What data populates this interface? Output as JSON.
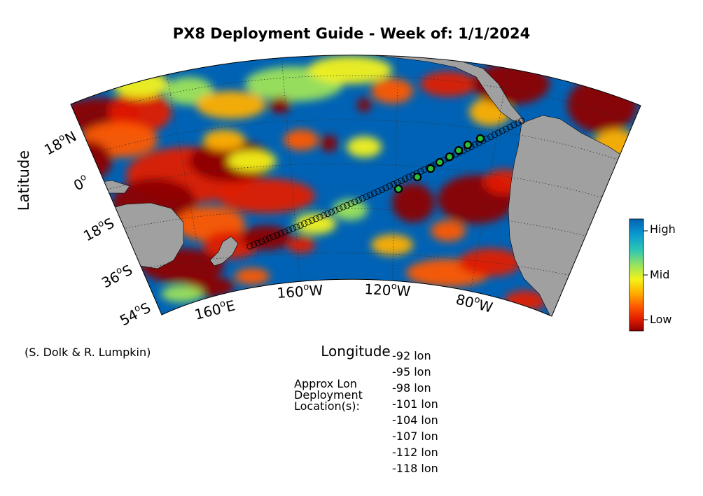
{
  "title": "PX8 Deployment Guide - Week of: 1/1/2024",
  "axes": {
    "xlabel": "Longitude",
    "ylabel": "Latitude",
    "lat_ticks": [
      {
        "label": "18",
        "sup": "o",
        "hemi": "N"
      },
      {
        "label": "0",
        "sup": "o",
        "hemi": ""
      },
      {
        "label": "18",
        "sup": "o",
        "hemi": "S"
      },
      {
        "label": "36",
        "sup": "o",
        "hemi": "S"
      },
      {
        "label": "54",
        "sup": "o",
        "hemi": "S"
      }
    ],
    "lon_ticks": [
      {
        "label": "160",
        "sup": "o",
        "hemi": "E"
      },
      {
        "label": "160",
        "sup": "o",
        "hemi": "W"
      },
      {
        "label": "120",
        "sup": "o",
        "hemi": "W"
      },
      {
        "label": "80",
        "sup": "o",
        "hemi": "W"
      }
    ]
  },
  "colorbar": {
    "labels": [
      "High",
      "Mid",
      "Low"
    ],
    "colors": [
      "#0062b4",
      "#0a9ad0",
      "#2ec6b2",
      "#9ee45a",
      "#f2f21a",
      "#ffb000",
      "#ff5a00",
      "#e01a00",
      "#8c0000"
    ]
  },
  "legend": {
    "credit": "(S. Dolk & R. Lumpkin)",
    "approx_lines": [
      "Approx Lon",
      "Deployment",
      "Location(s):"
    ],
    "deployment_lons": [
      "-92 lon",
      "-95 lon",
      "-98 lon",
      "-101 lon",
      "-104 lon",
      "-107 lon",
      "-112 lon",
      "-118 lon"
    ]
  },
  "map_colors": {
    "ocean_high": "#0062b4",
    "land": "#a0a0a0",
    "marker_fill": "#2bbf3a",
    "marker_edge": "#000000"
  }
}
